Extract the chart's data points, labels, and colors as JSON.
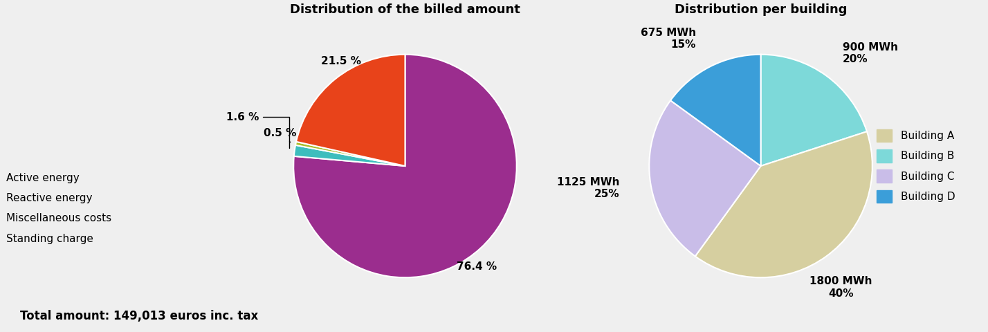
{
  "left_title": "Distribution of the billed amount",
  "right_title": "Distribution per building",
  "footer_text": "Total amount: 149,013 euros inc. tax",
  "left_pie": {
    "values": [
      76.4,
      1.6,
      0.5,
      21.5
    ],
    "colors": [
      "#9B2D8E",
      "#3DBDBD",
      "#AABC2A",
      "#E8431A"
    ],
    "startangle": 90,
    "counterclock": false,
    "legend_labels": [
      "Active energy",
      "Reactive energy",
      "Miscellaneous costs",
      "Standing charge"
    ]
  },
  "right_pie": {
    "values": [
      20,
      40,
      25,
      15
    ],
    "colors": [
      "#7DD9D9",
      "#D6CFA0",
      "#C9BDE8",
      "#3B9ED9"
    ],
    "startangle": 90,
    "counterclock": false,
    "legend_labels": [
      "Building A",
      "Building B",
      "Building C",
      "Building D"
    ],
    "legend_colors": [
      "#D6CFA0",
      "#7DD9D9",
      "#C9BDE8",
      "#3B9ED9"
    ],
    "autopct_labels": [
      "900 MWh\n20%",
      "1800 MWh\n40%",
      "1125 MWh\n25%",
      "675 MWh\n15%"
    ]
  },
  "background_color": "#EFEFEF",
  "title_fontsize": 13,
  "label_fontsize": 11,
  "legend_fontsize": 11,
  "footer_fontsize": 12
}
